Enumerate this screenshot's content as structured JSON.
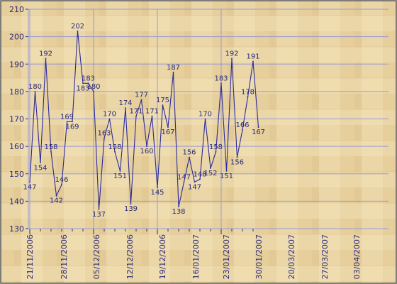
{
  "colors": {
    "background": "#ead6a6",
    "grid": "#9a9ad8",
    "line": "#2a2a9a",
    "text": "#2a2a7a",
    "frame": "#555555"
  },
  "chart_data": {
    "type": "line",
    "title": "",
    "xlabel": "",
    "ylabel": "",
    "ylim": [
      130,
      210
    ],
    "yticks": [
      130,
      140,
      150,
      160,
      170,
      180,
      190,
      200,
      210
    ],
    "grid": true,
    "legend": "none",
    "x_tick_labels": [
      "21/11/2006",
      "28/11/2006",
      "05/12/2006",
      "12/12/2006",
      "19/12/2006",
      "16/01/2007",
      "23/01/2007",
      "30/01/2007",
      "20/03/2007",
      "27/03/2007",
      "03/04/2007"
    ],
    "series": [
      {
        "values": [
          147,
          180,
          154,
          192,
          158,
          142,
          146,
          169,
          169,
          202,
          183,
          183,
          180,
          137,
          163,
          170,
          158,
          151,
          174,
          139,
          171,
          177,
          160,
          171,
          145,
          175,
          167,
          187,
          138,
          147,
          156,
          147,
          148,
          170,
          152,
          158,
          183,
          151,
          192,
          156,
          166,
          178,
          191,
          167
        ]
      }
    ]
  }
}
